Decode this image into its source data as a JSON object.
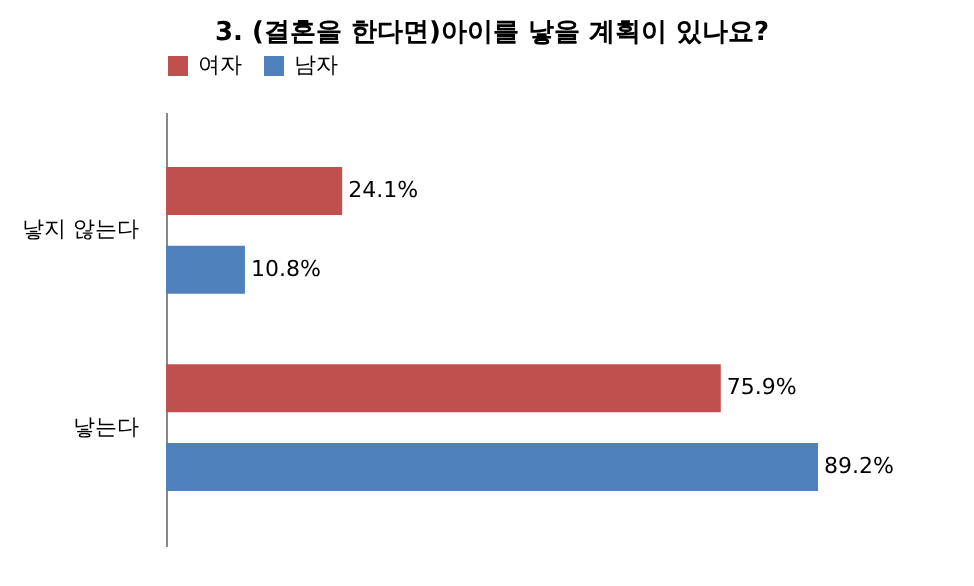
{
  "chart_data": {
    "type": "bar",
    "orientation": "horizontal",
    "title": "3. (결혼을 한다면)아이를 낳을 계획이 있나요?",
    "categories": [
      "낳지 않는다",
      "낳는다"
    ],
    "series": [
      {
        "name": "여자",
        "color": "#c0504d",
        "values": [
          24.1,
          75.9
        ],
        "value_labels": [
          "24.1%",
          "75.9%"
        ]
      },
      {
        "name": "남자",
        "color": "#4f81bd",
        "values": [
          10.8,
          89.2
        ],
        "value_labels": [
          "10.8%",
          "89.2%"
        ]
      }
    ],
    "legend": "top",
    "grid": false
  }
}
